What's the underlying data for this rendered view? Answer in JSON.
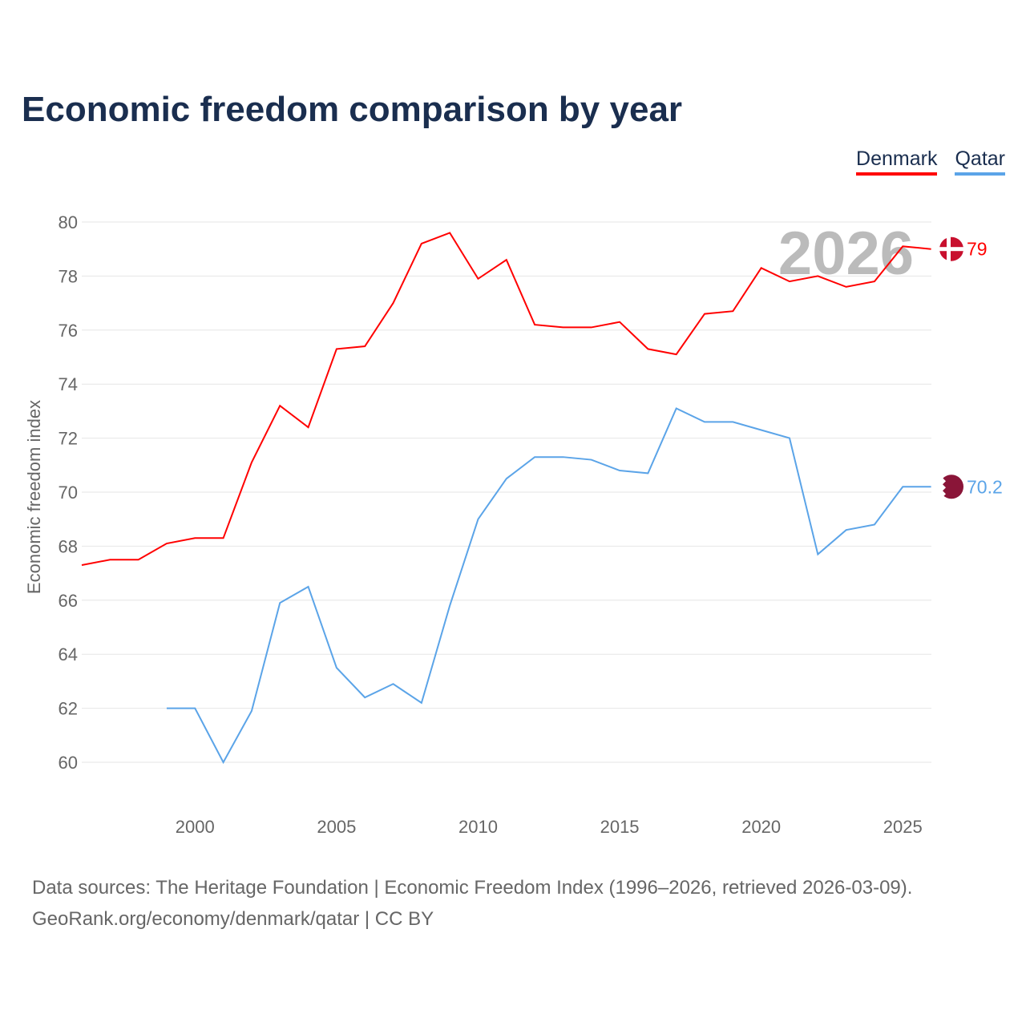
{
  "title": "Economic freedom comparison by year",
  "source_line1": "Data sources: The Heritage Foundation | Economic Freedom Index (1996–2026, retrieved 2026-03-09).",
  "source_line2": "GeoRank.org/economy/denmark/qatar | CC BY",
  "chart_data": {
    "type": "line",
    "title": "Economic freedom comparison by year",
    "xlabel": "",
    "ylabel": "Economic freedom index",
    "xlim": [
      1996,
      2026
    ],
    "ylim": [
      58,
      81
    ],
    "xticks": [
      2000,
      2005,
      2010,
      2015,
      2020,
      2025
    ],
    "yticks": [
      60,
      62,
      64,
      66,
      68,
      70,
      72,
      74,
      76,
      78,
      80
    ],
    "year_label": "2026",
    "legend": "top-right",
    "grid": true,
    "series": [
      {
        "name": "Denmark",
        "color": "#ff0000",
        "end_label": "79",
        "x": [
          1996,
          1997,
          1998,
          1999,
          2000,
          2001,
          2002,
          2003,
          2004,
          2005,
          2006,
          2007,
          2008,
          2009,
          2010,
          2011,
          2012,
          2013,
          2014,
          2015,
          2016,
          2017,
          2018,
          2019,
          2020,
          2021,
          2022,
          2023,
          2024,
          2025,
          2026
        ],
        "values": [
          67.3,
          67.5,
          67.5,
          68.1,
          68.3,
          68.3,
          71.1,
          73.2,
          72.4,
          75.3,
          75.4,
          77.0,
          79.2,
          79.6,
          77.9,
          78.6,
          76.2,
          76.1,
          76.1,
          76.3,
          75.3,
          75.1,
          76.6,
          76.7,
          78.3,
          77.8,
          78.0,
          77.6,
          77.8,
          79.1,
          79.0
        ]
      },
      {
        "name": "Qatar",
        "color": "#5ba4e8",
        "end_label": "70.2",
        "x": [
          1999,
          2000,
          2001,
          2002,
          2003,
          2004,
          2005,
          2006,
          2007,
          2008,
          2009,
          2010,
          2011,
          2012,
          2013,
          2014,
          2015,
          2016,
          2017,
          2018,
          2019,
          2020,
          2021,
          2022,
          2023,
          2024,
          2025,
          2026
        ],
        "values": [
          62.0,
          62.0,
          60.0,
          61.9,
          65.9,
          66.5,
          63.5,
          62.4,
          62.9,
          62.2,
          65.8,
          69.0,
          70.5,
          71.3,
          71.3,
          71.2,
          70.8,
          70.7,
          73.1,
          72.6,
          72.6,
          72.3,
          72.0,
          67.7,
          68.6,
          68.8,
          70.2,
          70.2
        ]
      }
    ]
  }
}
